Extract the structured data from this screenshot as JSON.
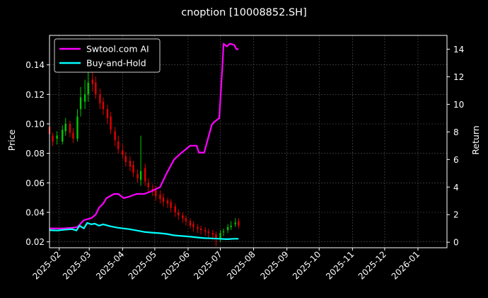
{
  "chart_data": {
    "type": "line",
    "title": "cnoption [10008852.SH]",
    "ylabel_left": "Price",
    "ylabel_right": "Return",
    "xlim": [
      "2025-01-23",
      "2026-01-28"
    ],
    "ylim_left": [
      0.016,
      0.16
    ],
    "ylim_right": [
      -0.4,
      15.0
    ],
    "x_ticks": [
      "2025-02",
      "2025-03",
      "2025-04",
      "2025-05",
      "2025-06",
      "2025-07",
      "2025-08",
      "2025-09",
      "2025-10",
      "2025-11",
      "2025-12",
      "2026-01"
    ],
    "y_ticks_left": [
      "0.02",
      "0.04",
      "0.06",
      "0.08",
      "0.10",
      "0.12",
      "0.14"
    ],
    "y_ticks_right": [
      "0",
      "2",
      "4",
      "6",
      "8",
      "10",
      "12",
      "14"
    ],
    "grid": true,
    "legend_position": "top-left",
    "colors": {
      "background": "#000000",
      "up_candle": "#00c800",
      "down_candle": "#e00000",
      "strategy": "#ff00ff",
      "buy_hold": "#00ffff",
      "grid": "#555555"
    },
    "series": [
      {
        "name": "Swtool.com AI",
        "axis": "right",
        "x": [
          "2025-01-23",
          "2025-02-05",
          "2025-02-13",
          "2025-02-18",
          "2025-02-21",
          "2025-02-24",
          "2025-03-03",
          "2025-03-07",
          "2025-03-10",
          "2025-03-14",
          "2025-03-17",
          "2025-03-24",
          "2025-03-28",
          "2025-04-02",
          "2025-04-07",
          "2025-04-14",
          "2025-04-21",
          "2025-04-28",
          "2025-05-06",
          "2025-05-12",
          "2025-05-19",
          "2025-05-26",
          "2025-06-03",
          "2025-06-09",
          "2025-06-11",
          "2025-06-16",
          "2025-06-23",
          "2025-06-25",
          "2025-06-30",
          "2025-07-03",
          "2025-07-04",
          "2025-07-07",
          "2025-07-10",
          "2025-07-14",
          "2025-07-16",
          "2025-07-18"
        ],
        "values": [
          1.0,
          1.0,
          1.05,
          1.1,
          1.35,
          1.6,
          1.75,
          2.0,
          2.5,
          2.8,
          3.2,
          3.5,
          3.5,
          3.2,
          3.3,
          3.5,
          3.5,
          3.7,
          4.0,
          5.0,
          6.0,
          6.5,
          7.0,
          7.0,
          6.5,
          6.5,
          8.5,
          8.7,
          9.0,
          12.8,
          14.4,
          14.2,
          14.4,
          14.3,
          14.0,
          14.0
        ]
      },
      {
        "name": "Buy-and-Hold",
        "axis": "right",
        "x": [
          "2025-01-23",
          "2025-01-30",
          "2025-02-05",
          "2025-02-13",
          "2025-02-17",
          "2025-02-20",
          "2025-02-24",
          "2025-02-27",
          "2025-03-03",
          "2025-03-06",
          "2025-03-10",
          "2025-03-14",
          "2025-03-21",
          "2025-03-28",
          "2025-04-07",
          "2025-04-14",
          "2025-04-21",
          "2025-04-28",
          "2025-05-06",
          "2025-05-12",
          "2025-05-19",
          "2025-05-26",
          "2025-06-03",
          "2025-06-09",
          "2025-06-16",
          "2025-06-23",
          "2025-06-30",
          "2025-07-07",
          "2025-07-14",
          "2025-07-18"
        ],
        "values": [
          0.88,
          0.85,
          0.9,
          0.95,
          0.85,
          1.2,
          1.0,
          1.4,
          1.3,
          1.35,
          1.2,
          1.3,
          1.15,
          1.05,
          0.95,
          0.85,
          0.75,
          0.7,
          0.65,
          0.6,
          0.5,
          0.45,
          0.4,
          0.35,
          0.3,
          0.28,
          0.25,
          0.22,
          0.25,
          0.25
        ]
      }
    ],
    "candles": {
      "axis": "left",
      "x": [
        "2025-01-23",
        "2025-01-26",
        "2025-01-30",
        "2025-02-04",
        "2025-02-07",
        "2025-02-11",
        "2025-02-14",
        "2025-02-18",
        "2025-02-21",
        "2025-02-25",
        "2025-02-28",
        "2025-03-04",
        "2025-03-07",
        "2025-03-11",
        "2025-03-14",
        "2025-03-18",
        "2025-03-21",
        "2025-03-25",
        "2025-03-28",
        "2025-04-01",
        "2025-04-04",
        "2025-04-08",
        "2025-04-11",
        "2025-04-15",
        "2025-04-18",
        "2025-04-22",
        "2025-04-25",
        "2025-04-29",
        "2025-05-02",
        "2025-05-06",
        "2025-05-09",
        "2025-05-13",
        "2025-05-16",
        "2025-05-20",
        "2025-05-23",
        "2025-05-27",
        "2025-05-30",
        "2025-06-03",
        "2025-06-06",
        "2025-06-10",
        "2025-06-13",
        "2025-06-17",
        "2025-06-20",
        "2025-06-24",
        "2025-06-27",
        "2025-07-01",
        "2025-07-04",
        "2025-07-08",
        "2025-07-11",
        "2025-07-15",
        "2025-07-18"
      ],
      "open": [
        0.098,
        0.092,
        0.09,
        0.088,
        0.095,
        0.1,
        0.094,
        0.09,
        0.11,
        0.115,
        0.12,
        0.13,
        0.128,
        0.12,
        0.115,
        0.11,
        0.105,
        0.095,
        0.088,
        0.082,
        0.078,
        0.075,
        0.072,
        0.066,
        0.062,
        0.07,
        0.06,
        0.056,
        0.055,
        0.052,
        0.05,
        0.048,
        0.047,
        0.044,
        0.04,
        0.038,
        0.036,
        0.034,
        0.032,
        0.03,
        0.029,
        0.028,
        0.027,
        0.026,
        0.025,
        0.022,
        0.027,
        0.028,
        0.03,
        0.032,
        0.034
      ],
      "close": [
        0.093,
        0.088,
        0.092,
        0.096,
        0.1,
        0.094,
        0.09,
        0.105,
        0.118,
        0.12,
        0.128,
        0.127,
        0.12,
        0.114,
        0.11,
        0.104,
        0.096,
        0.089,
        0.083,
        0.079,
        0.074,
        0.071,
        0.067,
        0.063,
        0.068,
        0.061,
        0.057,
        0.054,
        0.051,
        0.049,
        0.047,
        0.046,
        0.043,
        0.04,
        0.038,
        0.036,
        0.034,
        0.031,
        0.03,
        0.029,
        0.028,
        0.027,
        0.026,
        0.025,
        0.022,
        0.026,
        0.027,
        0.03,
        0.031,
        0.033,
        0.031
      ],
      "high": [
        0.1,
        0.094,
        0.095,
        0.099,
        0.104,
        0.102,
        0.097,
        0.11,
        0.125,
        0.13,
        0.14,
        0.138,
        0.132,
        0.124,
        0.118,
        0.113,
        0.108,
        0.098,
        0.092,
        0.086,
        0.081,
        0.078,
        0.075,
        0.069,
        0.092,
        0.073,
        0.063,
        0.059,
        0.058,
        0.055,
        0.053,
        0.05,
        0.049,
        0.046,
        0.042,
        0.04,
        0.038,
        0.036,
        0.034,
        0.032,
        0.031,
        0.03,
        0.029,
        0.028,
        0.027,
        0.028,
        0.029,
        0.032,
        0.034,
        0.036,
        0.036
      ],
      "low": [
        0.09,
        0.085,
        0.086,
        0.086,
        0.092,
        0.091,
        0.087,
        0.088,
        0.105,
        0.11,
        0.115,
        0.122,
        0.117,
        0.11,
        0.106,
        0.1,
        0.093,
        0.085,
        0.08,
        0.076,
        0.071,
        0.068,
        0.064,
        0.06,
        0.058,
        0.058,
        0.054,
        0.051,
        0.048,
        0.046,
        0.044,
        0.043,
        0.04,
        0.037,
        0.035,
        0.033,
        0.031,
        0.029,
        0.027,
        0.026,
        0.025,
        0.024,
        0.023,
        0.021,
        0.017,
        0.02,
        0.024,
        0.026,
        0.028,
        0.03,
        0.029
      ]
    }
  }
}
